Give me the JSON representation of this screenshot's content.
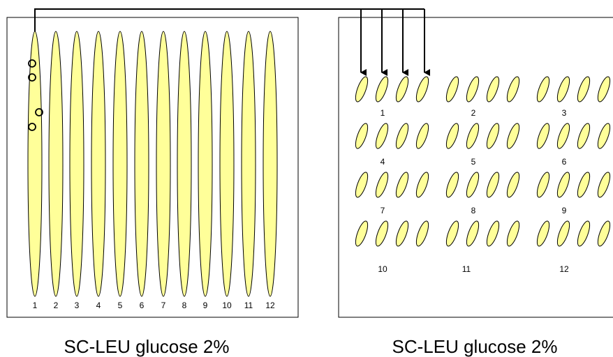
{
  "left_plate": {
    "streak_labels": [
      "1",
      "2",
      "3",
      "4",
      "5",
      "6",
      "7",
      "8",
      "9",
      "10",
      "11",
      "12"
    ],
    "caption": "SC-LEU glucose 2%"
  },
  "right_plate": {
    "group_labels": [
      "1",
      "2",
      "3",
      "4",
      "5",
      "6",
      "7",
      "8",
      "9",
      "10",
      "11",
      "12"
    ],
    "caption": "SC-LEU glucose 2%"
  }
}
